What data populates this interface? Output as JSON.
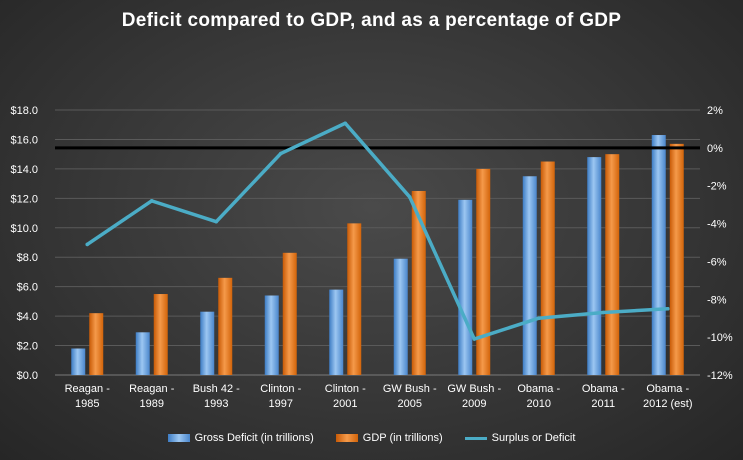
{
  "chart_data": {
    "type": "bar",
    "title": "Deficit compared to GDP, and as a percentage of GDP",
    "categories": [
      [
        "Reagan -",
        "1985"
      ],
      [
        "Reagan -",
        "1989"
      ],
      [
        "Bush 42 -",
        "1993"
      ],
      [
        "Clinton -",
        "1997"
      ],
      [
        "Clinton -",
        "2001"
      ],
      [
        "GW Bush -",
        "2005"
      ],
      [
        "GW Bush -",
        "2009"
      ],
      [
        "Obama -",
        "2010"
      ],
      [
        "Obama -",
        "2011"
      ],
      [
        "Obama -",
        "2012 (est)"
      ]
    ],
    "series": [
      {
        "name": "Gross Deficit (in trillions)",
        "kind": "bar",
        "axis": "left",
        "color": "#5b9bd5",
        "values": [
          1.8,
          2.9,
          4.3,
          5.4,
          5.8,
          7.9,
          11.9,
          13.5,
          14.8,
          16.3
        ]
      },
      {
        "name": "GDP (in trillions)",
        "kind": "bar",
        "axis": "left",
        "color": "#e36c0a",
        "values": [
          4.2,
          5.5,
          6.6,
          8.3,
          10.3,
          12.5,
          14.0,
          14.5,
          15.0,
          15.7
        ]
      },
      {
        "name": "Surplus or Deficit",
        "kind": "line",
        "axis": "right",
        "color": "#4bacc6",
        "values": [
          -5.1,
          -2.8,
          -3.9,
          -0.3,
          1.3,
          -2.6,
          -10.1,
          -9.0,
          -8.7,
          -8.5
        ]
      }
    ],
    "y_left": {
      "min": 0,
      "max": 18,
      "step": 2,
      "tick_labels": [
        "$0.0",
        "$2.0",
        "$4.0",
        "$6.0",
        "$8.0",
        "$10.0",
        "$12.0",
        "$14.0",
        "$16.0",
        "$18.0"
      ]
    },
    "y_right": {
      "min": -12,
      "max": 2,
      "step": 2,
      "tick_labels": [
        "-12%",
        "-10%",
        "-8%",
        "-6%",
        "-4%",
        "-2%",
        "0%",
        "2%"
      ]
    },
    "reference_line": {
      "axis": "right",
      "value": 0,
      "color": "#000000"
    },
    "grid": true,
    "legend": "bottom"
  }
}
